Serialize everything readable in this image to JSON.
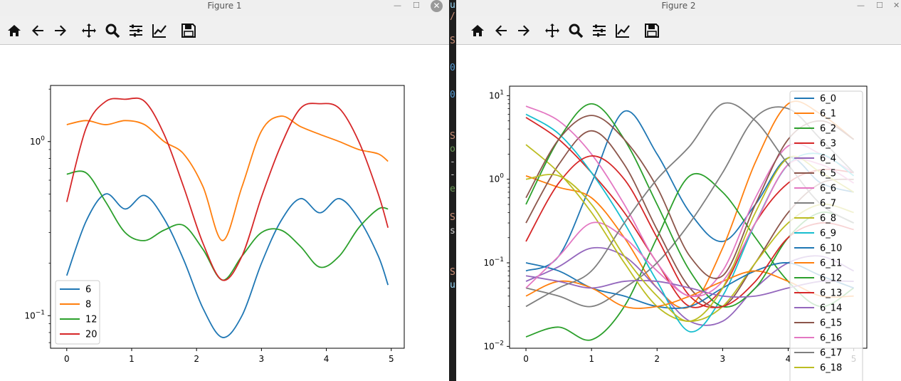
{
  "windows": [
    {
      "title": "Figure 1",
      "toolbar": [
        "home-icon",
        "back-arrow-icon",
        "forward-arrow-icon",
        "pan-move-icon",
        "zoom-magnifier-icon",
        "configure-subplots-icon",
        "edit-axis-curves-icon",
        "save-floppy-icon"
      ],
      "chart_data": {
        "type": "line",
        "yscale": "log",
        "xlim": [
          -0.25,
          5.2
        ],
        "ylim": [
          0.065,
          2.1
        ],
        "xticks": [
          "0",
          "1",
          "2",
          "3",
          "4",
          "5"
        ],
        "yticks": [
          {
            "value": 1,
            "label": "10",
            "exp": "0"
          },
          {
            "value": 0.1,
            "label": "10",
            "exp": "−1"
          }
        ],
        "grid": false,
        "legend_placement": "lower-left",
        "x": [
          0,
          0.3,
          0.6,
          0.9,
          1.2,
          1.5,
          1.8,
          2.1,
          2.4,
          2.7,
          3.0,
          3.3,
          3.6,
          3.9,
          4.2,
          4.5,
          4.8,
          4.95
        ],
        "series": [
          {
            "name": "6",
            "color": "#1f77b4",
            "values": [
              0.17,
              0.35,
              0.5,
              0.41,
              0.49,
              0.36,
              0.21,
              0.11,
              0.075,
              0.1,
              0.2,
              0.35,
              0.47,
              0.39,
              0.47,
              0.36,
              0.22,
              0.15
            ]
          },
          {
            "name": "8",
            "color": "#ff7f0e",
            "values": [
              1.25,
              1.32,
              1.25,
              1.32,
              1.25,
              1.0,
              0.85,
              0.55,
              0.27,
              0.55,
              1.15,
              1.4,
              1.22,
              1.1,
              1.0,
              0.9,
              0.85,
              0.77
            ]
          },
          {
            "name": "12",
            "color": "#2ca02c",
            "values": [
              0.65,
              0.66,
              0.45,
              0.3,
              0.27,
              0.31,
              0.33,
              0.24,
              0.16,
              0.22,
              0.3,
              0.31,
              0.25,
              0.19,
              0.22,
              0.32,
              0.41,
              0.41
            ]
          },
          {
            "name": "20",
            "color": "#d62728",
            "values": [
              0.45,
              1.2,
              1.7,
              1.75,
              1.7,
              1.1,
              0.55,
              0.26,
              0.16,
              0.22,
              0.48,
              0.95,
              1.55,
              1.65,
              1.55,
              1.0,
              0.5,
              0.32
            ]
          }
        ]
      }
    },
    {
      "title": "Figure 2",
      "toolbar": [
        "home-icon",
        "back-arrow-icon",
        "forward-arrow-icon",
        "pan-move-icon",
        "zoom-magnifier-icon",
        "configure-subplots-icon",
        "edit-axis-curves-icon",
        "save-floppy-icon"
      ],
      "chart_data": {
        "type": "line",
        "yscale": "log",
        "xlim": [
          -0.25,
          5.2
        ],
        "ylim": [
          0.0095,
          13
        ],
        "xticks": [
          "0",
          "1",
          "2",
          "3",
          "4",
          "5"
        ],
        "yticks": [
          {
            "value": 10,
            "label": "10",
            "exp": "1"
          },
          {
            "value": 1,
            "label": "10",
            "exp": "0"
          },
          {
            "value": 0.1,
            "label": "10",
            "exp": "−1"
          },
          {
            "value": 0.01,
            "label": "10",
            "exp": "−2"
          }
        ],
        "grid": false,
        "legend_placement": "right",
        "x": [
          0,
          0.5,
          1,
          1.5,
          2,
          2.5,
          3,
          3.5,
          4,
          4.5,
          5
        ],
        "series": [
          {
            "name": "6_0",
            "color": "#1f77b4",
            "values": [
              0.08,
              0.12,
              0.9,
              6.5,
              2.0,
              0.4,
              0.18,
              0.5,
              1.8,
              0.9,
              0.7
            ]
          },
          {
            "name": "6_1",
            "color": "#ff7f0e",
            "values": [
              1.1,
              0.8,
              0.6,
              0.2,
              0.05,
              0.03,
              0.15,
              1.6,
              8.0,
              6.0,
              3.0
            ]
          },
          {
            "name": "6_2",
            "color": "#2ca02c",
            "values": [
              0.013,
              0.017,
              0.012,
              0.03,
              0.2,
              1.1,
              0.7,
              0.2,
              0.06,
              0.03,
              0.05
            ]
          },
          {
            "name": "6_3",
            "color": "#d62728",
            "values": [
              5.5,
              3.0,
              1.2,
              0.4,
              0.1,
              0.03,
              0.05,
              0.3,
              0.9,
              1.3,
              1.2
            ]
          },
          {
            "name": "6_4",
            "color": "#9467bd",
            "values": [
              0.06,
              0.09,
              0.15,
              0.12,
              0.05,
              0.02,
              0.02,
              0.05,
              0.1,
              0.12,
              0.08
            ]
          },
          {
            "name": "6_5",
            "color": "#8c564b",
            "values": [
              0.3,
              1.5,
              3.8,
              1.5,
              0.25,
              0.05,
              0.03,
              0.1,
              0.4,
              0.9,
              1.0
            ]
          },
          {
            "name": "6_6",
            "color": "#e377c2",
            "values": [
              7.5,
              5.0,
              2.0,
              0.5,
              0.1,
              0.04,
              0.08,
              0.6,
              2.5,
              2.0,
              1.2
            ]
          },
          {
            "name": "6_7",
            "color": "#7f7f7f",
            "values": [
              0.05,
              0.04,
              0.03,
              0.05,
              0.1,
              0.3,
              1.2,
              5.5,
              7.0,
              3.0,
              1.2
            ]
          },
          {
            "name": "6_8",
            "color": "#bcbd22",
            "values": [
              2.6,
              1.2,
              0.4,
              0.1,
              0.03,
              0.02,
              0.03,
              0.1,
              0.3,
              0.5,
              0.4
            ]
          },
          {
            "name": "6_9",
            "color": "#17becf",
            "values": [
              6.0,
              3.5,
              1.2,
              0.3,
              0.06,
              0.015,
              0.04,
              0.3,
              1.5,
              2.0,
              1.1
            ]
          },
          {
            "name": "6_10",
            "color": "#1f77b4",
            "values": [
              0.1,
              0.08,
              0.05,
              0.04,
              0.03,
              0.03,
              0.05,
              0.08,
              0.1,
              0.07,
              0.05
            ]
          },
          {
            "name": "6_11",
            "color": "#ff7f0e",
            "values": [
              0.04,
              0.06,
              0.05,
              0.03,
              0.03,
              0.04,
              0.06,
              0.08,
              0.06,
              0.04,
              0.04
            ]
          },
          {
            "name": "6_12",
            "color": "#2ca02c",
            "values": [
              0.5,
              3.0,
              8.0,
              3.0,
              0.5,
              0.08,
              0.03,
              0.05,
              0.2,
              0.4,
              0.3
            ]
          },
          {
            "name": "6_13",
            "color": "#d62728",
            "values": [
              0.18,
              0.9,
              1.9,
              1.0,
              0.2,
              0.04,
              0.03,
              0.06,
              0.2,
              0.3,
              0.25
            ]
          },
          {
            "name": "6_14",
            "color": "#9467bd",
            "values": [
              0.07,
              0.06,
              0.05,
              0.06,
              0.06,
              0.05,
              0.04,
              0.04,
              0.05,
              0.06,
              0.06
            ]
          },
          {
            "name": "6_15",
            "color": "#8c564b",
            "values": [
              0.6,
              3.0,
              5.8,
              3.0,
              0.8,
              0.12,
              0.07,
              0.5,
              3.0,
              5.0,
              3.0
            ]
          },
          {
            "name": "6_16",
            "color": "#e377c2",
            "values": [
              0.05,
              0.12,
              0.3,
              0.2,
              0.08,
              0.04,
              0.06,
              0.3,
              1.5,
              1.5,
              0.9
            ]
          },
          {
            "name": "6_17",
            "color": "#7f7f7f",
            "values": [
              0.03,
              0.05,
              0.08,
              0.3,
              1.0,
              2.5,
              8.0,
              5.0,
              1.5,
              0.5,
              0.3
            ]
          },
          {
            "name": "6_18",
            "color": "#bcbd22",
            "values": [
              1.0,
              1.1,
              0.5,
              0.12,
              0.04,
              0.02,
              0.05,
              0.4,
              1.8,
              1.2,
              0.7
            ]
          }
        ]
      }
    }
  ],
  "terminal_strip": {
    "lines": [
      {
        "text": "u",
        "color": "#9cdcfe"
      },
      {
        "text": "/",
        "color": "#ce9178"
      },
      {
        "text": "S",
        "color": "#ce9178"
      },
      {
        "text": "0",
        "color": "#569cd6"
      },
      {
        "text": "0",
        "color": "#569cd6"
      },
      {
        "text": "S",
        "color": "#ce9178"
      },
      {
        "text": "o",
        "color": "#6a9955"
      },
      {
        "text": "-",
        "color": "#cccccc"
      },
      {
        "text": "-",
        "color": "#cccccc"
      },
      {
        "text": "e",
        "color": "#6a9955"
      },
      {
        "text": "S",
        "color": "#ce9178"
      },
      {
        "text": "s",
        "color": "#d4d4d4"
      },
      {
        "text": "S",
        "color": "#ce9178"
      },
      {
        "text": "u",
        "color": "#9cdcfe"
      }
    ]
  }
}
